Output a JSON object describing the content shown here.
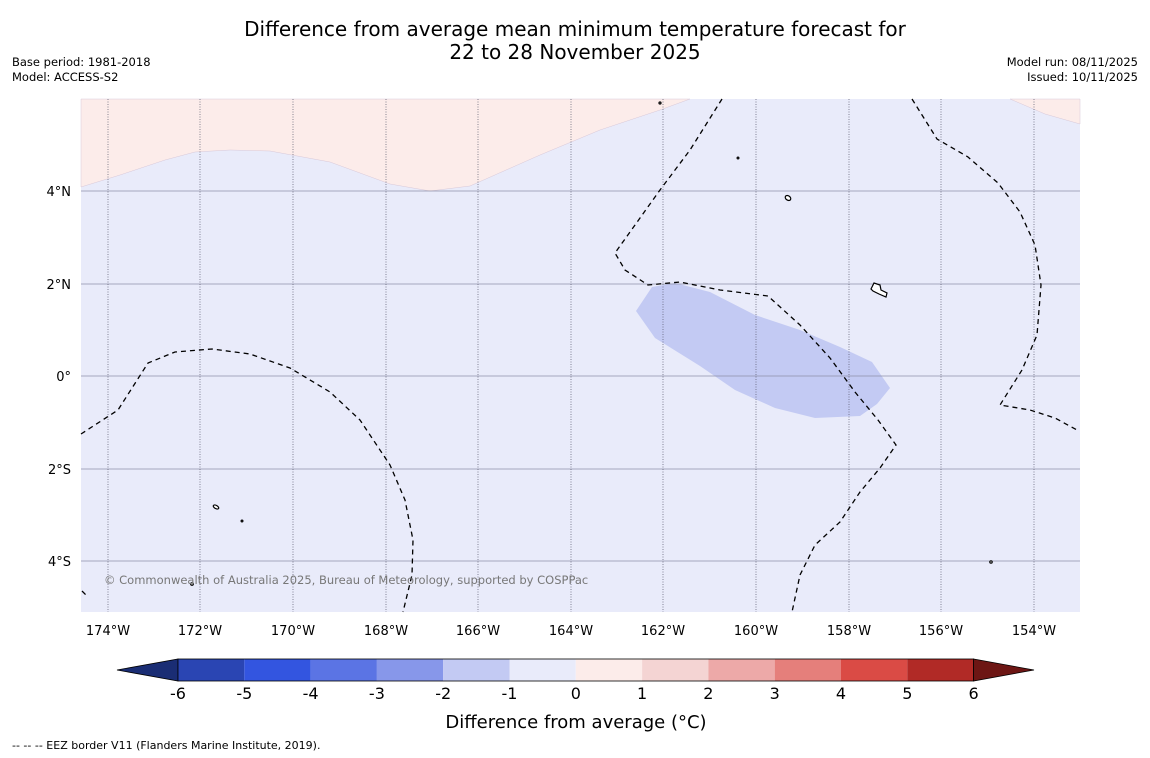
{
  "title": {
    "line1": "Difference from average mean minimum temperature forecast for",
    "line2": "22 to 28 November 2025"
  },
  "meta_left": {
    "base_period": "Base period: 1981-2018",
    "model": "Model: ACCESS-S2"
  },
  "meta_right": {
    "model_run": "Model run: 08/11/2025",
    "issued": "Issued: 10/11/2025"
  },
  "map": {
    "lat_labels": [
      "4°N",
      "2°N",
      "0°",
      "2°S",
      "4°S"
    ],
    "lon_labels": [
      "174°W",
      "172°W",
      "170°W",
      "168°W",
      "166°W",
      "164°W",
      "162°W",
      "160°W",
      "158°W",
      "156°W",
      "154°W"
    ],
    "copyright": "© Commonwealth of Australia 2025, Bureau of Meteorology, supported by COSPPac"
  },
  "colorbar": {
    "label": "Difference from average (°C)",
    "ticks": [
      "-6",
      "-5",
      "-4",
      "-3",
      "-2",
      "-1",
      "0",
      "1",
      "2",
      "3",
      "4",
      "5",
      "6"
    ],
    "colors": [
      "#1a2d74",
      "#2a45b3",
      "#3355e0",
      "#5b74e4",
      "#8797ea",
      "#c3caf3",
      "#e9ebfa",
      "#fcecea",
      "#f4d4d3",
      "#eda9a8",
      "#e57f7b",
      "#da4b45",
      "#b12a26",
      "#6d1614"
    ]
  },
  "footnote": "--  --  -- EEZ border V11 (Flanders Marine Institute, 2019)."
}
